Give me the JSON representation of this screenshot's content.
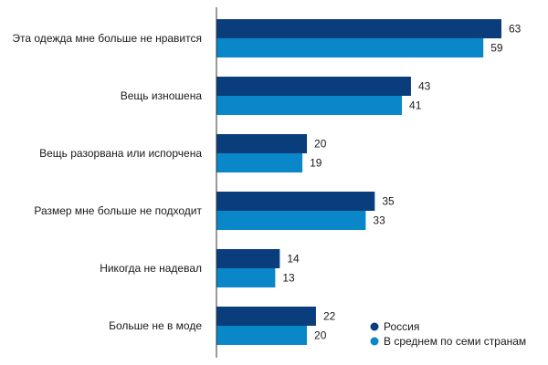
{
  "chart_data": {
    "type": "bar",
    "orientation": "horizontal",
    "categories": [
      "Эта одежда мне больше не нравится",
      "Вещь изношена",
      "Вещь разорвана или испорчена",
      "Размер мне больше не подходит",
      "Никогда не надевал",
      "Больше не в моде"
    ],
    "series": [
      {
        "name": "Россия",
        "color": "#0a3d7c",
        "values": [
          63,
          43,
          20,
          35,
          14,
          22
        ]
      },
      {
        "name": "В среднем по семи странам",
        "color": "#0a87c8",
        "values": [
          59,
          41,
          19,
          33,
          13,
          20
        ]
      }
    ],
    "xlim": [
      0,
      63
    ],
    "grid": false,
    "legend": "bottom-right"
  }
}
